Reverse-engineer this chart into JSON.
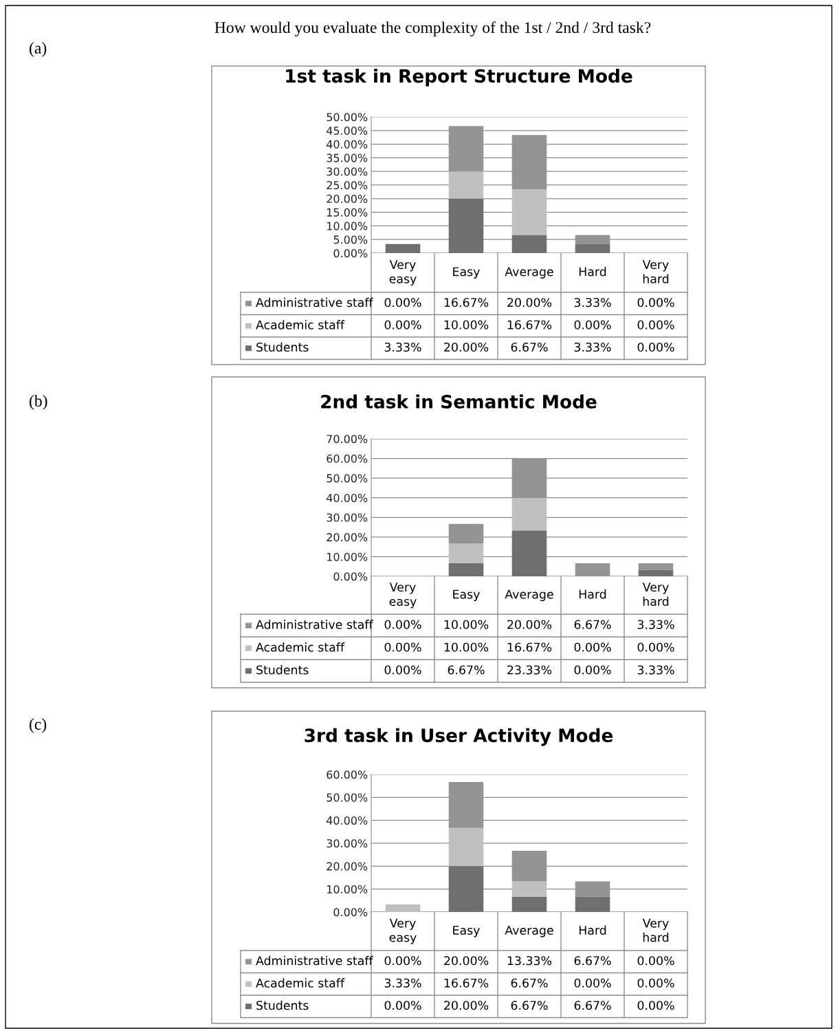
{
  "chart_data": [
    {
      "type": "bar",
      "stacked": true,
      "title": "1st task in Report Structure Mode",
      "annotations": [
        "How would you evaluate the complexity of the 1st / 2nd / 3rd task?",
        "(a)"
      ],
      "categories": [
        "Very easy",
        "Easy",
        "Average",
        "Hard",
        "Very hard"
      ],
      "series": [
        {
          "name": "Students",
          "color": "#6f6f6f",
          "values": [
            3.33,
            20.0,
            6.67,
            3.33,
            0.0
          ],
          "value_labels": [
            "3.33%",
            "20.00%",
            "6.67%",
            "3.33%",
            "0.00%"
          ]
        },
        {
          "name": "Academic staff",
          "color": "#c0c0c0",
          "values": [
            0.0,
            10.0,
            16.67,
            0.0,
            0.0
          ],
          "value_labels": [
            "0.00%",
            "10.00%",
            "16.67%",
            "0.00%",
            "0.00%"
          ]
        },
        {
          "name": "Administrative staff",
          "color": "#939393",
          "values": [
            0.0,
            16.67,
            20.0,
            3.33,
            0.0
          ],
          "value_labels": [
            "0.00%",
            "16.67%",
            "20.00%",
            "3.33%",
            "0.00%"
          ]
        }
      ],
      "ylim": [
        0,
        50
      ],
      "yticks": [
        {
          "value": 0,
          "label": "0.00%"
        },
        {
          "value": 5,
          "label": "5.00%"
        },
        {
          "value": 10,
          "label": "10.00%"
        },
        {
          "value": 15,
          "label": "15.00%"
        },
        {
          "value": 20,
          "label": "20.00%"
        },
        {
          "value": 25,
          "label": "25.00%"
        },
        {
          "value": 30,
          "label": "30.00%"
        },
        {
          "value": 35,
          "label": "35.00%"
        },
        {
          "value": 40,
          "label": "40.00%"
        },
        {
          "value": 45,
          "label": "45.00%"
        },
        {
          "value": 50,
          "label": "50.00%"
        }
      ],
      "grid": "y",
      "legend": "bottom"
    },
    {
      "type": "bar",
      "stacked": true,
      "title": "2nd task in Semantic Mode",
      "annotations": [
        "(b)"
      ],
      "categories": [
        "Very easy",
        "Easy",
        "Average",
        "Hard",
        "Very hard"
      ],
      "series": [
        {
          "name": "Students",
          "color": "#6f6f6f",
          "values": [
            0.0,
            6.67,
            23.33,
            0.0,
            3.33
          ],
          "value_labels": [
            "0.00%",
            "6.67%",
            "23.33%",
            "0.00%",
            "3.33%"
          ]
        },
        {
          "name": "Academic staff",
          "color": "#c0c0c0",
          "values": [
            0.0,
            10.0,
            16.67,
            0.0,
            0.0
          ],
          "value_labels": [
            "0.00%",
            "10.00%",
            "16.67%",
            "0.00%",
            "0.00%"
          ]
        },
        {
          "name": "Administrative staff",
          "color": "#939393",
          "values": [
            0.0,
            10.0,
            20.0,
            6.67,
            3.33
          ],
          "value_labels": [
            "0.00%",
            "10.00%",
            "20.00%",
            "6.67%",
            "3.33%"
          ]
        }
      ],
      "ylim": [
        0,
        70
      ],
      "yticks": [
        {
          "value": 0,
          "label": "0.00%"
        },
        {
          "value": 10,
          "label": "10.00%"
        },
        {
          "value": 20,
          "label": "20.00%"
        },
        {
          "value": 30,
          "label": "30.00%"
        },
        {
          "value": 40,
          "label": "40.00%"
        },
        {
          "value": 50,
          "label": "50.00%"
        },
        {
          "value": 60,
          "label": "60.00%"
        },
        {
          "value": 70,
          "label": "70.00%"
        }
      ],
      "grid": "y",
      "legend": "bottom"
    },
    {
      "type": "bar",
      "stacked": true,
      "title": "3rd task in User Activity Mode",
      "annotations": [
        "(c)"
      ],
      "categories": [
        "Very easy",
        "Easy",
        "Average",
        "Hard",
        "Very hard"
      ],
      "series": [
        {
          "name": "Students",
          "color": "#6f6f6f",
          "values": [
            0.0,
            20.0,
            6.67,
            6.67,
            0.0
          ],
          "value_labels": [
            "0.00%",
            "20.00%",
            "6.67%",
            "6.67%",
            "0.00%"
          ]
        },
        {
          "name": "Academic staff",
          "color": "#c0c0c0",
          "values": [
            3.33,
            16.67,
            6.67,
            0.0,
            0.0
          ],
          "value_labels": [
            "3.33%",
            "16.67%",
            "6.67%",
            "0.00%",
            "0.00%"
          ]
        },
        {
          "name": "Administrative staff",
          "color": "#939393",
          "values": [
            0.0,
            20.0,
            13.33,
            6.67,
            0.0
          ],
          "value_labels": [
            "0.00%",
            "20.00%",
            "13.33%",
            "6.67%",
            "0.00%"
          ]
        }
      ],
      "ylim": [
        0,
        60
      ],
      "yticks": [
        {
          "value": 0,
          "label": "0.00%"
        },
        {
          "value": 10,
          "label": "10.00%"
        },
        {
          "value": 20,
          "label": "20.00%"
        },
        {
          "value": 30,
          "label": "30.00%"
        },
        {
          "value": 40,
          "label": "40.00%"
        },
        {
          "value": 50,
          "label": "50.00%"
        },
        {
          "value": 60,
          "label": "60.00%"
        }
      ],
      "grid": "y",
      "legend": "bottom"
    }
  ]
}
